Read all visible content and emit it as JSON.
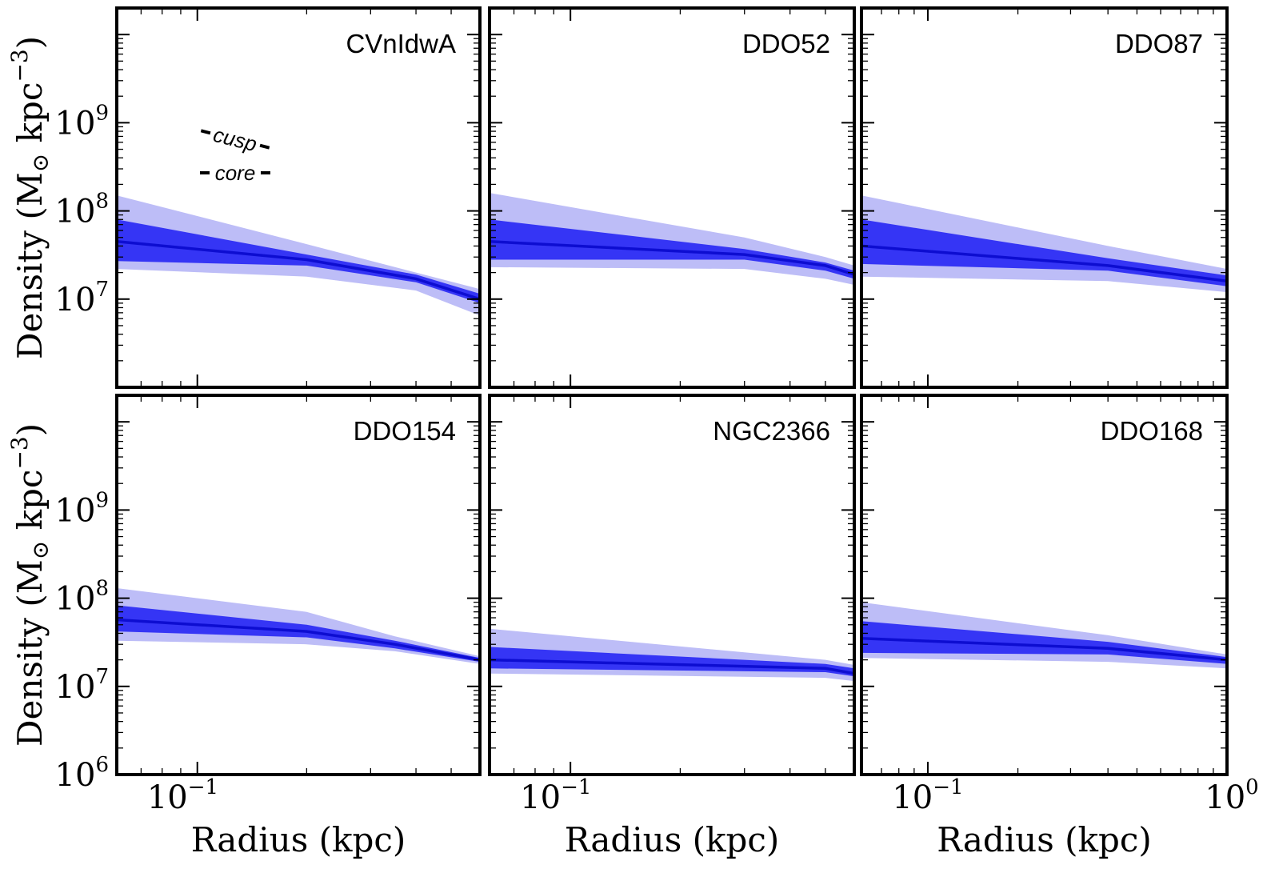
{
  "figure": {
    "colors": {
      "outer_band": "#bdbdf7",
      "inner_band": "#3535f5",
      "median_line": "#0d0dd1",
      "frame": "#000000"
    },
    "xlabel": "Radius (kpc)",
    "ylabel": "Density (M⊙ kpc⁻³)",
    "ylabel_parts": {
      "word": "Density",
      "unit_base": "M",
      "unit_sub": "⊙",
      "unit_rest": " kpc",
      "unit_exp": "−3"
    },
    "x_tick_labels": [
      {
        "base": "10",
        "exp": "−1"
      },
      {
        "base": "10",
        "exp": "0"
      }
    ],
    "y_tick_labels": [
      {
        "base": "10",
        "exp": "6"
      },
      {
        "base": "10",
        "exp": "7"
      },
      {
        "base": "10",
        "exp": "8"
      },
      {
        "base": "10",
        "exp": "9"
      }
    ],
    "slope_labels": {
      "cusp": "cusp",
      "core": "core"
    }
  },
  "chart_data": [
    {
      "type": "area",
      "panel": "CVnIdwA",
      "title": "CVnIdwA",
      "xscale": "log",
      "yscale": "log",
      "xlim": [
        0.06,
        0.6
      ],
      "ylim": [
        1000000.0,
        20000000000.0
      ],
      "x": [
        0.06,
        0.2,
        0.4,
        0.6
      ],
      "median": [
        45000000.0,
        28000000.0,
        17000000.0,
        10000000.0
      ],
      "inner_upper": [
        80000000.0,
        32000000.0,
        19000000.0,
        11500000.0
      ],
      "inner_lower": [
        27000000.0,
        24000000.0,
        15500000.0,
        9000000.0
      ],
      "outer_upper": [
        150000000.0,
        42000000.0,
        20000000.0,
        13000000.0
      ],
      "outer_lower": [
        22000000.0,
        18000000.0,
        12500000.0,
        6500000.0
      ]
    },
    {
      "type": "area",
      "panel": "DDO52",
      "title": "DDO52",
      "xscale": "log",
      "yscale": "log",
      "xlim": [
        0.06,
        0.6
      ],
      "ylim": [
        1000000.0,
        20000000000.0
      ],
      "x": [
        0.06,
        0.3,
        0.5,
        0.6
      ],
      "median": [
        45000000.0,
        32000000.0,
        24000000.0,
        19000000.0
      ],
      "inner_upper": [
        80000000.0,
        37000000.0,
        26000000.0,
        21000000.0
      ],
      "inner_lower": [
        28000000.0,
        28000000.0,
        21000000.0,
        17000000.0
      ],
      "outer_upper": [
        160000000.0,
        50000000.0,
        30000000.0,
        24000000.0
      ],
      "outer_lower": [
        23000000.0,
        22000000.0,
        17000000.0,
        14500000.0
      ]
    },
    {
      "type": "area",
      "panel": "DDO87",
      "title": "DDO87",
      "xscale": "log",
      "yscale": "log",
      "xlim": [
        0.06,
        1.0
      ],
      "ylim": [
        1000000.0,
        20000000000.0
      ],
      "x": [
        0.06,
        0.4,
        1.0
      ],
      "median": [
        40000000.0,
        24000000.0,
        16000000.0
      ],
      "inner_upper": [
        80000000.0,
        29000000.0,
        18500000.0
      ],
      "inner_lower": [
        25000000.0,
        21000000.0,
        14000000.0
      ],
      "outer_upper": [
        150000000.0,
        40000000.0,
        22000000.0
      ],
      "outer_lower": [
        18000000.0,
        16000000.0,
        12000000.0
      ]
    },
    {
      "type": "area",
      "panel": "DDO154",
      "title": "DDO154",
      "xscale": "log",
      "yscale": "log",
      "xlim": [
        0.06,
        0.6
      ],
      "ylim": [
        1000000.0,
        20000000000.0
      ],
      "x": [
        0.06,
        0.2,
        0.35,
        0.6
      ],
      "median": [
        57000000.0,
        42000000.0,
        30000000.0,
        20000000.0
      ],
      "inner_upper": [
        83000000.0,
        50000000.0,
        33000000.0,
        21000000.0
      ],
      "inner_lower": [
        42000000.0,
        36000000.0,
        27000000.0,
        19000000.0
      ],
      "outer_upper": [
        130000000.0,
        70000000.0,
        37000000.0,
        22000000.0
      ],
      "outer_lower": [
        33000000.0,
        30000000.0,
        25000000.0,
        18000000.0
      ]
    },
    {
      "type": "area",
      "panel": "NGC2366",
      "title": "NGC2366",
      "xscale": "log",
      "yscale": "log",
      "xlim": [
        0.06,
        0.6
      ],
      "ylim": [
        1000000.0,
        20000000000.0
      ],
      "x": [
        0.06,
        0.5,
        0.6
      ],
      "median": [
        20000000.0,
        16000000.0,
        14000000.0
      ],
      "inner_upper": [
        28000000.0,
        18000000.0,
        16000000.0
      ],
      "inner_lower": [
        16000000.0,
        14500000.0,
        13000000.0
      ],
      "outer_upper": [
        45000000.0,
        20000000.0,
        17500000.0
      ],
      "outer_lower": [
        14000000.0,
        12500000.0,
        11500000.0
      ]
    },
    {
      "type": "area",
      "panel": "DDO168",
      "title": "DDO168",
      "xscale": "log",
      "yscale": "log",
      "xlim": [
        0.06,
        1.0
      ],
      "ylim": [
        1000000.0,
        20000000000.0
      ],
      "x": [
        0.06,
        0.4,
        1.0
      ],
      "median": [
        35000000.0,
        27000000.0,
        20000000.0
      ],
      "inner_upper": [
        55000000.0,
        32000000.0,
        21500000.0
      ],
      "inner_lower": [
        24000000.0,
        23000000.0,
        18000000.0
      ],
      "outer_upper": [
        90000000.0,
        38000000.0,
        23000000.0
      ],
      "outer_lower": [
        21000000.0,
        19000000.0,
        16000000.0
      ]
    }
  ]
}
